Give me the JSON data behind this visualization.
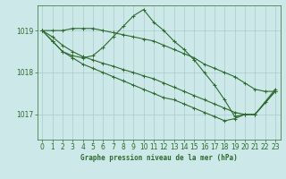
{
  "title": "Graphe pression niveau de la mer (hPa)",
  "bg_color": "#cce8e8",
  "grid_color": "#aacccc",
  "line_color": "#2d6a2d",
  "xlim": [
    -0.5,
    23.5
  ],
  "ylim": [
    1016.4,
    1019.6
  ],
  "yticks": [
    1017,
    1018,
    1019
  ],
  "xticks": [
    0,
    1,
    2,
    3,
    4,
    5,
    6,
    7,
    8,
    9,
    10,
    11,
    12,
    13,
    14,
    15,
    16,
    17,
    18,
    19,
    20,
    21,
    22,
    23
  ],
  "series": [
    {
      "x": [
        0,
        1,
        2,
        3,
        4,
        5,
        6,
        7,
        8,
        9,
        10,
        11,
        12,
        13,
        14,
        15,
        16,
        17,
        18,
        19,
        20,
        21,
        22,
        23
      ],
      "y": [
        1019.0,
        1019.0,
        1019.0,
        1019.05,
        1019.05,
        1019.05,
        1019.0,
        1018.95,
        1018.9,
        1018.85,
        1018.8,
        1018.75,
        1018.65,
        1018.55,
        1018.45,
        1018.35,
        1018.2,
        1018.1,
        1018.0,
        1017.9,
        1017.75,
        1017.6,
        1017.55,
        1017.55
      ]
    },
    {
      "x": [
        0,
        1,
        2,
        3,
        4,
        5,
        6,
        7,
        8,
        9,
        10,
        11,
        12,
        13,
        14,
        15,
        16,
        17,
        18,
        19,
        20,
        21,
        22,
        23
      ],
      "y": [
        1019.0,
        1018.75,
        1018.5,
        1018.4,
        1018.35,
        1018.4,
        1018.6,
        1018.85,
        1019.1,
        1019.35,
        1019.5,
        1019.2,
        1019.0,
        1018.75,
        1018.55,
        1018.3,
        1018.0,
        1017.7,
        1017.35,
        1016.95,
        1017.0,
        1017.0,
        1017.3,
        1017.6
      ]
    },
    {
      "x": [
        0,
        1,
        2,
        3,
        4,
        5,
        6,
        7,
        8,
        9,
        10,
        11,
        12,
        13,
        14,
        15,
        16,
        17,
        18,
        19,
        20,
        21,
        23
      ],
      "y": [
        1019.0,
        1018.85,
        1018.65,
        1018.5,
        1018.38,
        1018.3,
        1018.22,
        1018.15,
        1018.07,
        1018.0,
        1017.92,
        1017.85,
        1017.75,
        1017.65,
        1017.55,
        1017.45,
        1017.35,
        1017.25,
        1017.15,
        1017.05,
        1017.0,
        1017.0,
        1017.55
      ]
    },
    {
      "x": [
        0,
        1,
        2,
        3,
        4,
        5,
        6,
        7,
        8,
        9,
        10,
        11,
        12,
        13,
        14,
        15,
        16,
        17,
        18,
        19,
        20,
        21,
        23
      ],
      "y": [
        1019.0,
        1018.75,
        1018.5,
        1018.35,
        1018.2,
        1018.1,
        1018.0,
        1017.9,
        1017.8,
        1017.7,
        1017.6,
        1017.5,
        1017.4,
        1017.35,
        1017.25,
        1017.15,
        1017.05,
        1016.95,
        1016.85,
        1016.9,
        1017.0,
        1017.0,
        1017.55
      ]
    }
  ]
}
